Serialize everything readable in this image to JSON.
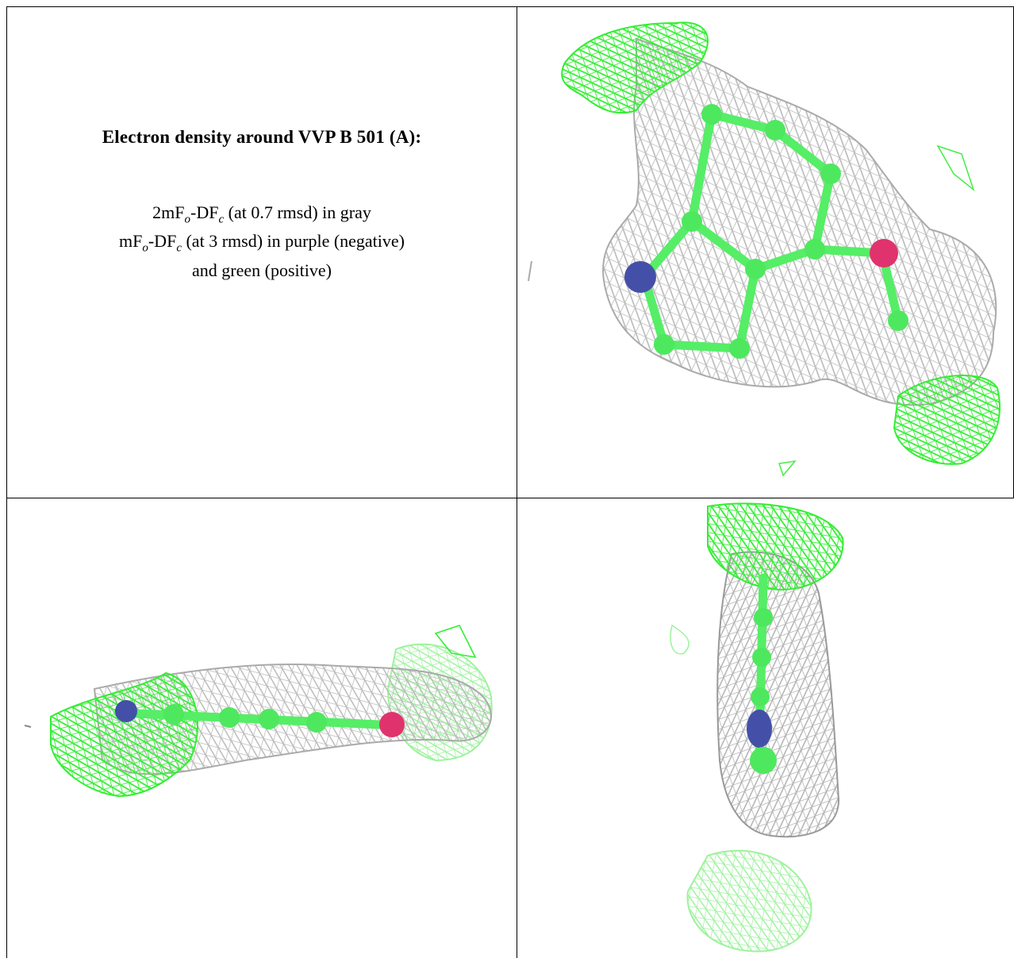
{
  "caption": {
    "title": "Electron density around VVP B 501 (A):",
    "line1_prefix": "2mF",
    "line1_sub1": "o",
    "line1_mid": "-DF",
    "line1_sub2": "c",
    "line1_suffix": " (at 0.7 rmsd) in gray",
    "line2_prefix": "mF",
    "line2_sub1": "o",
    "line2_mid": "-DF",
    "line2_sub2": "c",
    "line2_suffix": " (at 3 rmsd) in purple (negative)",
    "line3": "and green (positive)"
  },
  "colors": {
    "mesh_gray": "#b8b8b8",
    "positive_green": "#33ee33",
    "atom_green": "#55ee66",
    "nitrogen_blue": "#4450a8",
    "oxygen_pink": "#e0336e"
  }
}
